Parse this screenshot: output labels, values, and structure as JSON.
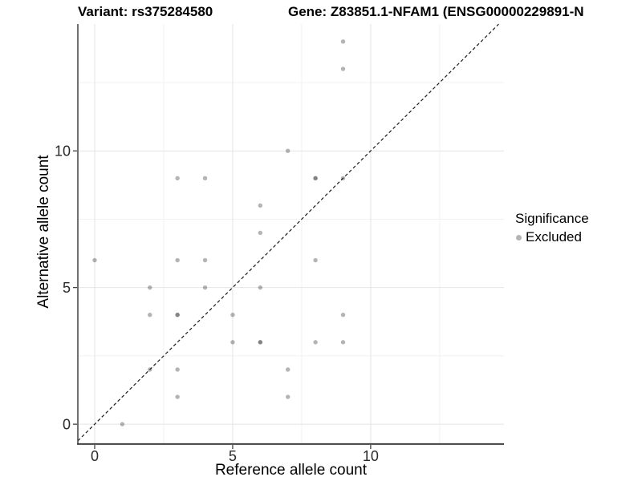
{
  "header": {
    "left_title": "Variant: rs375284580",
    "right_title": "Gene: Z83851.1-NFAM1 (ENSG00000229891-N"
  },
  "chart_data": {
    "type": "scatter",
    "xlabel": "Reference allele count",
    "ylabel": "Alternative allele count",
    "xlim": [
      -0.61,
      14.83
    ],
    "ylim": [
      -0.7,
      14.64
    ],
    "x_ticks": [
      0,
      5,
      10
    ],
    "y_ticks": [
      0,
      5,
      10
    ],
    "minor_breaks": [
      2.5,
      7.5,
      12.5
    ],
    "grid": true,
    "identity_line": {
      "slope": 1,
      "intercept": 0,
      "style": "dashed",
      "color": "#1a1a1a"
    },
    "point_color": "#282828",
    "point_alpha": 0.35,
    "series": [
      {
        "name": "Excluded",
        "points": [
          [
            0,
            6,
            1
          ],
          [
            1,
            0,
            1
          ],
          [
            2,
            2,
            1
          ],
          [
            2,
            4,
            1
          ],
          [
            2,
            5,
            1
          ],
          [
            3,
            1,
            1
          ],
          [
            3,
            2,
            1
          ],
          [
            3,
            4,
            2
          ],
          [
            3,
            6,
            1
          ],
          [
            3,
            9,
            1
          ],
          [
            4,
            5,
            1
          ],
          [
            4,
            6,
            1
          ],
          [
            4,
            9,
            1
          ],
          [
            5,
            3,
            1
          ],
          [
            5,
            4,
            1
          ],
          [
            6,
            3,
            2
          ],
          [
            6,
            5,
            1
          ],
          [
            6,
            7,
            1
          ],
          [
            6,
            8,
            1
          ],
          [
            7,
            1,
            1
          ],
          [
            7,
            2,
            1
          ],
          [
            7,
            10,
            1
          ],
          [
            8,
            3,
            1
          ],
          [
            8,
            6,
            1
          ],
          [
            8,
            9,
            2
          ],
          [
            9,
            3,
            1
          ],
          [
            9,
            4,
            1
          ],
          [
            9,
            9,
            1
          ],
          [
            9,
            13,
            1
          ],
          [
            9,
            14,
            1
          ]
        ]
      }
    ],
    "colors": {
      "grid_major": "#e4e4e4",
      "grid_minor": "#f1f1f1",
      "axis_line": "#404040",
      "tick_mark": "#333333",
      "tick_label": "#2b2b2b"
    }
  },
  "legend": {
    "title": "Significance",
    "items": [
      {
        "label": "Excluded",
        "color": "#b4b4b4"
      }
    ]
  }
}
